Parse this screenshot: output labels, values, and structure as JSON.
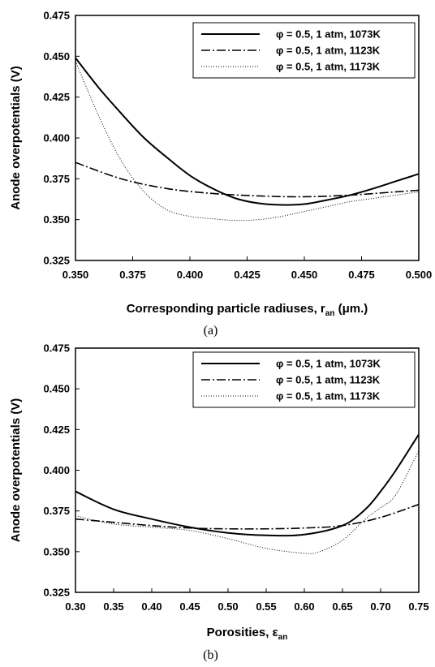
{
  "chart_data": [
    {
      "type": "line",
      "xlabel": "Corresponding particle radiuses, r",
      "xlabel_sub": "an",
      "xlabel_unit": " (μm.)",
      "ylabel": "Anode overpotentials (V)",
      "caption": "(a)",
      "xlim": [
        0.35,
        0.5
      ],
      "ylim": [
        0.325,
        0.475
      ],
      "xticks": [
        "0.350",
        "0.375",
        "0.400",
        "0.425",
        "0.450",
        "0.475",
        "0.500"
      ],
      "yticks": [
        "0.325",
        "0.350",
        "0.375",
        "0.400",
        "0.425",
        "0.450",
        "0.475"
      ],
      "grid": false,
      "legend_position": "top-right",
      "series": [
        {
          "name": "φ = 0.5, 1 atm, 1073K",
          "style": "solid",
          "x": [
            0.35,
            0.36,
            0.37,
            0.38,
            0.39,
            0.4,
            0.41,
            0.42,
            0.43,
            0.44,
            0.45,
            0.46,
            0.47,
            0.48,
            0.49,
            0.5
          ],
          "y": [
            0.449,
            0.431,
            0.415,
            0.4,
            0.388,
            0.377,
            0.369,
            0.363,
            0.36,
            0.359,
            0.3595,
            0.362,
            0.365,
            0.369,
            0.3735,
            0.378
          ]
        },
        {
          "name": "φ = 0.5, 1 atm, 1123K",
          "style": "dashdot",
          "x": [
            0.35,
            0.37,
            0.39,
            0.41,
            0.43,
            0.45,
            0.47,
            0.49,
            0.5
          ],
          "y": [
            0.385,
            0.375,
            0.369,
            0.366,
            0.3645,
            0.364,
            0.365,
            0.367,
            0.368
          ]
        },
        {
          "name": "φ = 0.5, 1 atm, 1173K",
          "style": "dotted",
          "x": [
            0.35,
            0.36,
            0.37,
            0.38,
            0.39,
            0.4,
            0.41,
            0.42,
            0.43,
            0.44,
            0.45,
            0.46,
            0.47,
            0.48,
            0.49,
            0.5
          ],
          "y": [
            0.447,
            0.414,
            0.386,
            0.367,
            0.356,
            0.352,
            0.3505,
            0.3495,
            0.35,
            0.352,
            0.355,
            0.358,
            0.361,
            0.363,
            0.365,
            0.367
          ]
        }
      ]
    },
    {
      "type": "line",
      "xlabel": "Porosities, ε",
      "xlabel_sub": "an",
      "xlabel_unit": "",
      "ylabel": "Anode overpotentials (V)",
      "caption": "(b)",
      "xlim": [
        0.3,
        0.75
      ],
      "ylim": [
        0.325,
        0.475
      ],
      "xticks": [
        "0.30",
        "0.35",
        "0.40",
        "0.45",
        "0.50",
        "0.55",
        "0.60",
        "0.65",
        "0.70",
        "0.75"
      ],
      "yticks": [
        "0.325",
        "0.350",
        "0.375",
        "0.400",
        "0.425",
        "0.450",
        "0.475"
      ],
      "grid": false,
      "legend_position": "top-right",
      "series": [
        {
          "name": "φ = 0.5, 1 atm, 1073K",
          "style": "solid",
          "x": [
            0.3,
            0.35,
            0.4,
            0.45,
            0.5,
            0.55,
            0.6,
            0.65,
            0.68,
            0.7,
            0.72,
            0.75
          ],
          "y": [
            0.387,
            0.376,
            0.37,
            0.365,
            0.3615,
            0.36,
            0.3605,
            0.366,
            0.376,
            0.387,
            0.4,
            0.422
          ]
        },
        {
          "name": "φ = 0.5, 1 atm, 1123K",
          "style": "dashdot",
          "x": [
            0.3,
            0.35,
            0.4,
            0.45,
            0.5,
            0.55,
            0.6,
            0.65,
            0.7,
            0.75
          ],
          "y": [
            0.37,
            0.368,
            0.366,
            0.3645,
            0.364,
            0.364,
            0.3645,
            0.366,
            0.371,
            0.379
          ]
        },
        {
          "name": "φ = 0.5, 1 atm, 1173K",
          "style": "dotted",
          "x": [
            0.3,
            0.35,
            0.4,
            0.45,
            0.5,
            0.55,
            0.6,
            0.62,
            0.65,
            0.68,
            0.7,
            0.72,
            0.75
          ],
          "y": [
            0.372,
            0.367,
            0.365,
            0.363,
            0.358,
            0.352,
            0.349,
            0.35,
            0.357,
            0.37,
            0.377,
            0.385,
            0.412
          ]
        }
      ]
    }
  ]
}
